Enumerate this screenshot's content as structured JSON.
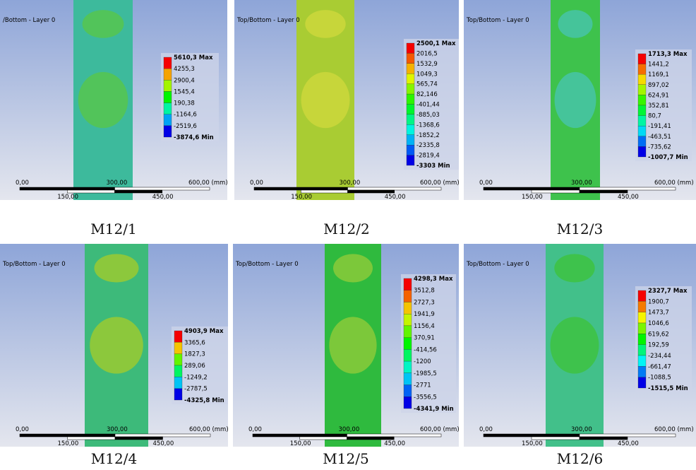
{
  "panels": [
    {
      "layer_label": "/Bottom - Layer 0",
      "legend": [
        "5610,3 Max",
        "4255,3",
        "2900,4",
        "1545,4",
        "190,38",
        "-1164,6",
        "-2519,6",
        "-3874,6 Min"
      ],
      "caption": "M12/1"
    },
    {
      "layer_label": "Top/Bottom - Layer 0",
      "legend": [
        "2500,1 Max",
        "2016,5",
        "1532,9",
        "1049,3",
        "565,74",
        "82,146",
        "-401,44",
        "-885,03",
        "-1368,6",
        "-1852,2",
        "-2335,8",
        "-2819,4",
        "-3303 Min"
      ],
      "caption": "M12/2"
    },
    {
      "layer_label": "Top/Bottom - Layer 0",
      "legend": [
        "1713,3 Max",
        "1441,2",
        "1169,1",
        "897,02",
        "624,91",
        "352,81",
        "80,7",
        "-191,41",
        "-463,51",
        "-735,62",
        "-1007,7 Min"
      ],
      "caption": "M12/3"
    },
    {
      "layer_label": "Top/Bottom - Layer 0",
      "legend": [
        "4903,9 Max",
        "3365,6",
        "1827,3",
        "289,06",
        "-1249,2",
        "-2787,5",
        "-4325,8 Min"
      ],
      "caption": "M12/4"
    },
    {
      "layer_label": "Top/Bottom - Layer 0",
      "legend": [
        "4298,3 Max",
        "3512,8",
        "2727,3",
        "1941,9",
        "1156,4",
        "370,91",
        "-414,56",
        "-1200",
        "-1985,5",
        "-2771",
        "-3556,5",
        "-4341,9 Min"
      ],
      "caption": "M12/5"
    },
    {
      "layer_label": "Top/Bottom - Layer 0",
      "legend": [
        "2327,7 Max",
        "1900,7",
        "1473,7",
        "1046,6",
        "619,62",
        "192,59",
        "-234,44",
        "-661,47",
        "-1088,5",
        "-1515,5 Min"
      ],
      "caption": "M12/6"
    }
  ],
  "scale": {
    "top": [
      "0,00",
      "300,00",
      "600,00 (mm)"
    ],
    "bottom": [
      "150,00",
      "450,00"
    ]
  }
}
